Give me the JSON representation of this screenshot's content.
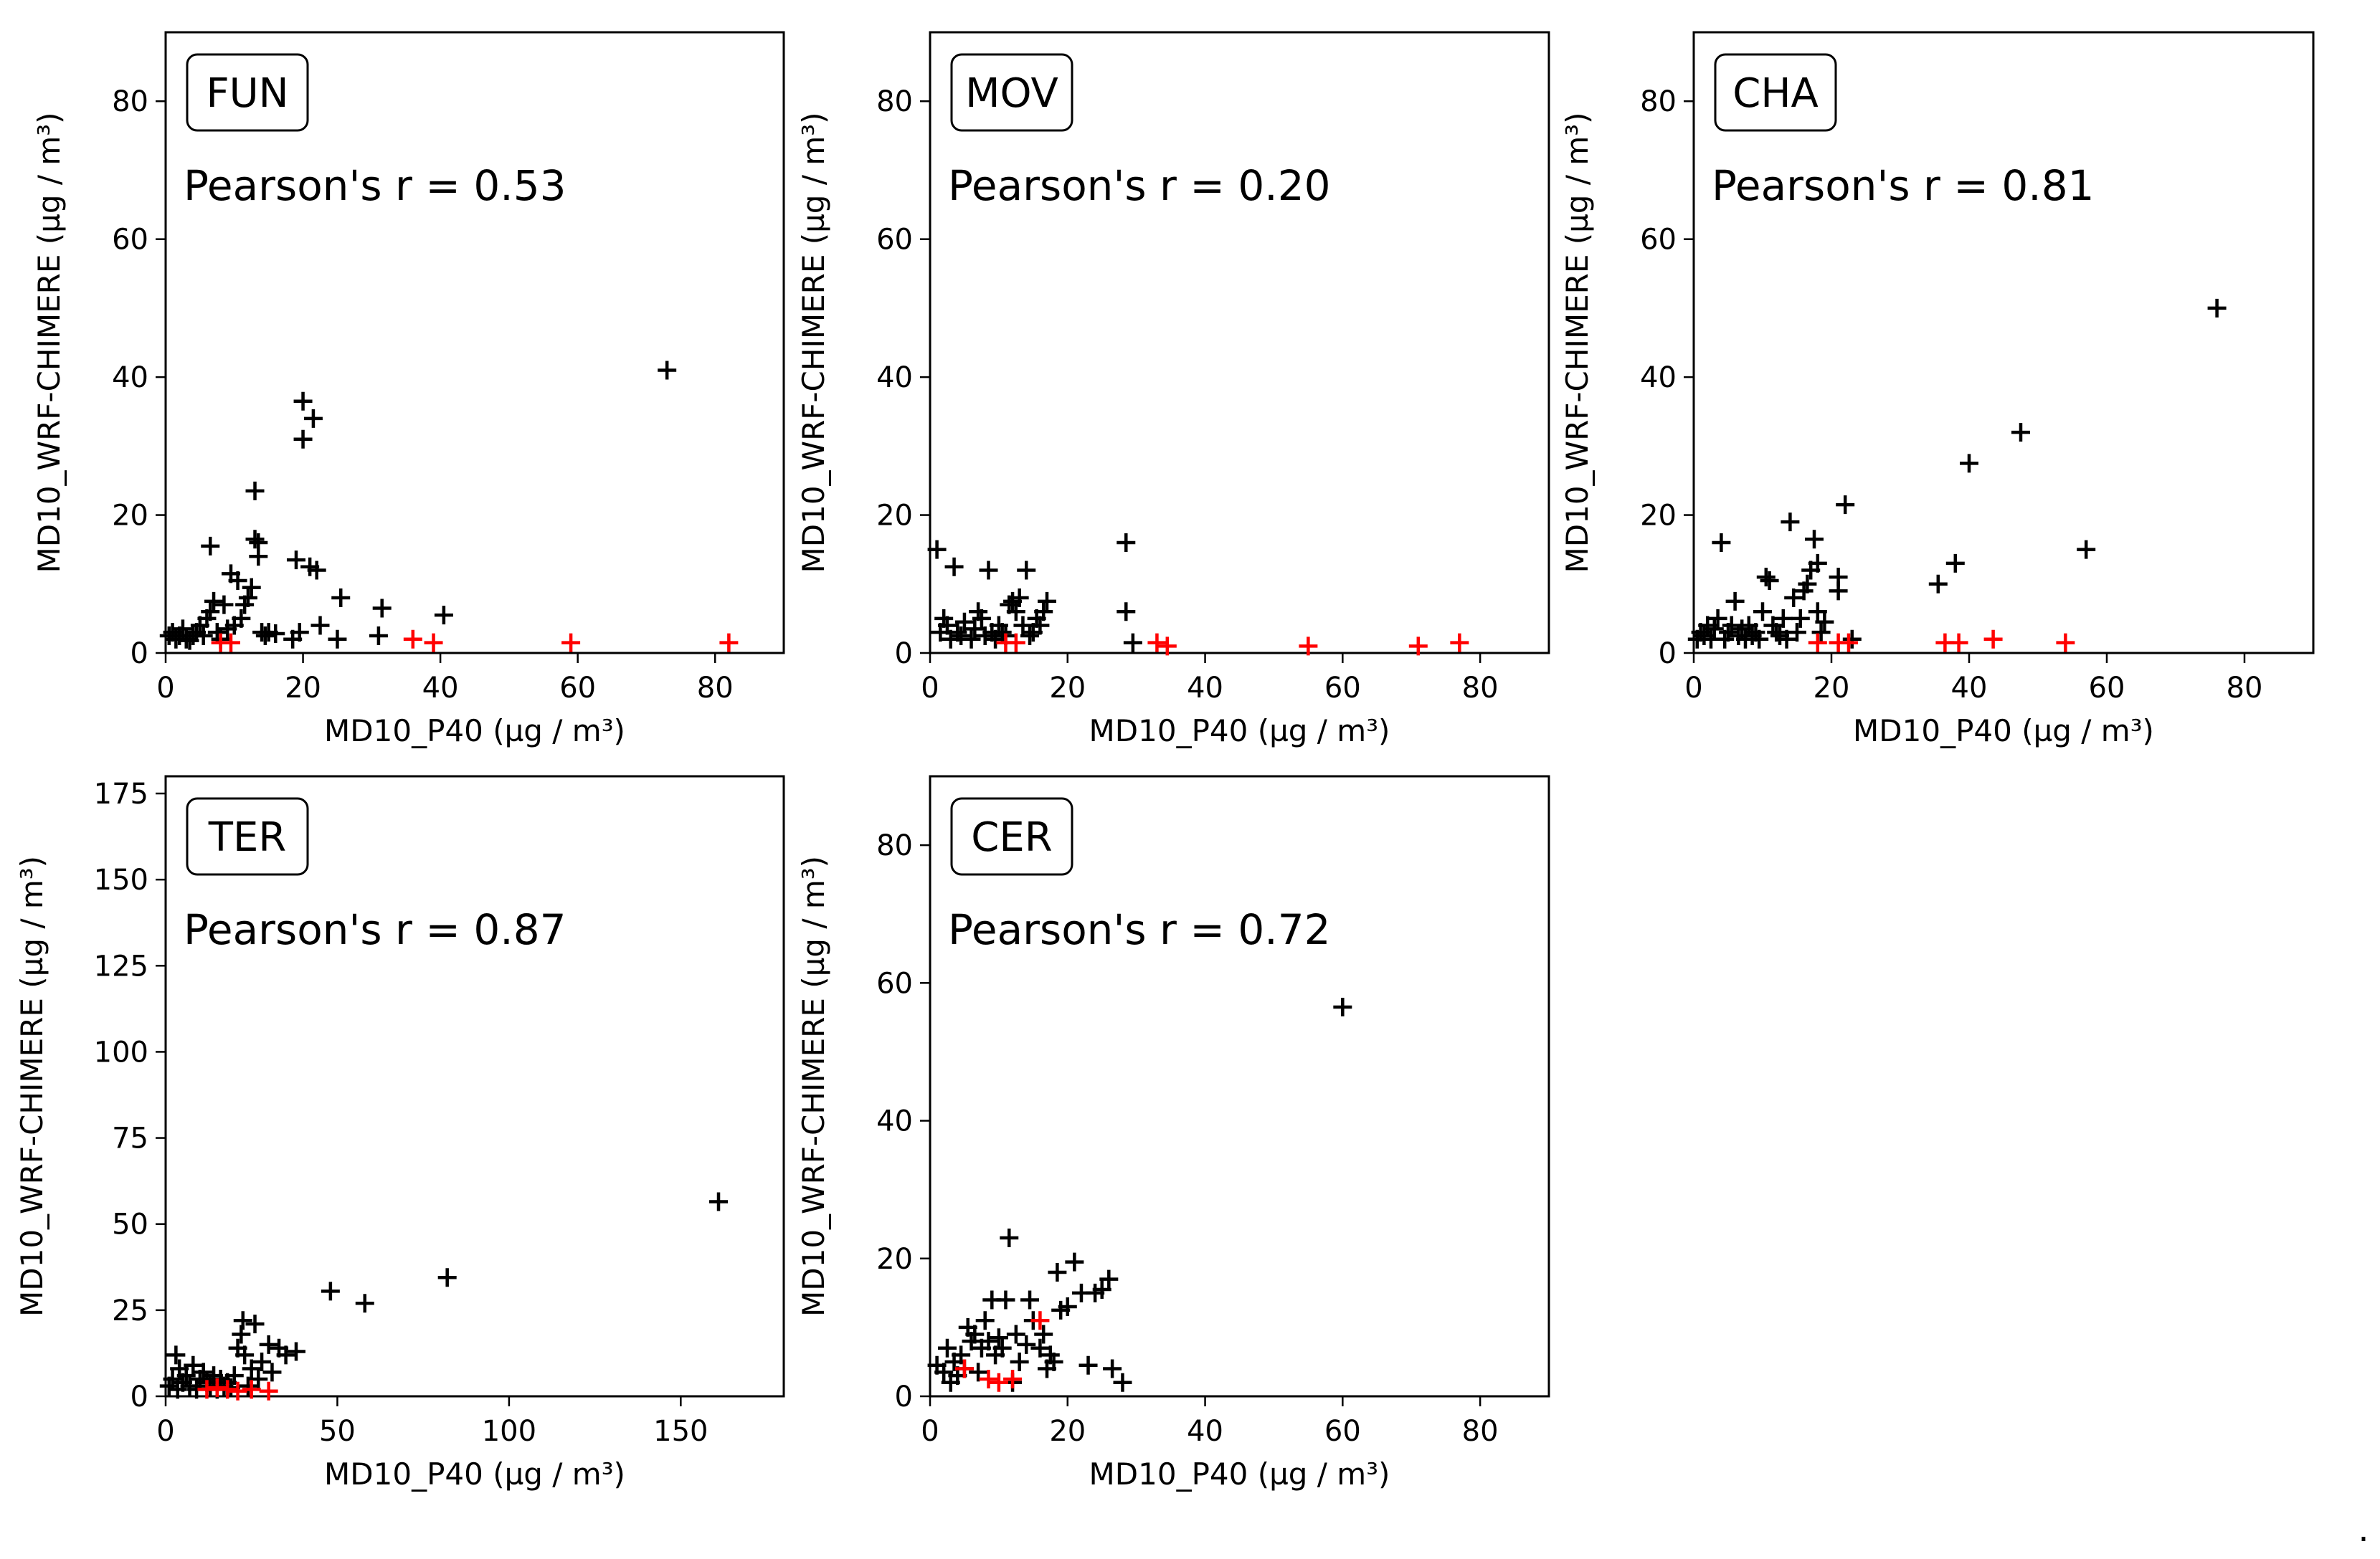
{
  "figure_dot": ".",
  "colors": {
    "normal": "#000000",
    "highlight": "#ff0000",
    "frame": "#000000"
  },
  "chart_data": [
    {
      "type": "scatter",
      "title": "FUN",
      "annotation": "Pearson's r = 0.53",
      "xlabel": "MD10_P40 (µg / m³)",
      "ylabel": "MD10_WRF-CHIMERE (µg / m³)",
      "xlim": [
        0,
        90
      ],
      "ylim": [
        0,
        90
      ],
      "xticks": [
        0,
        20,
        40,
        60,
        80
      ],
      "yticks": [
        0,
        20,
        40,
        60,
        80
      ],
      "series": [
        {
          "name": "points",
          "color": "#000000",
          "points": [
            [
              0.5,
              2.5
            ],
            [
              1,
              3
            ],
            [
              1.5,
              2
            ],
            [
              2,
              2.5
            ],
            [
              2.5,
              3.5
            ],
            [
              3,
              2
            ],
            [
              3.5,
              1.8
            ],
            [
              4,
              2.5
            ],
            [
              4.5,
              3
            ],
            [
              5,
              4
            ],
            [
              5.5,
              2.5
            ],
            [
              6,
              5
            ],
            [
              6.5,
              6
            ],
            [
              6.5,
              15.5
            ],
            [
              7,
              7.5
            ],
            [
              7.5,
              3
            ],
            [
              8,
              2
            ],
            [
              8.5,
              7
            ],
            [
              9,
              3.5
            ],
            [
              9.5,
              11.5
            ],
            [
              10,
              4
            ],
            [
              10.5,
              10.5
            ],
            [
              11,
              5
            ],
            [
              11.5,
              7
            ],
            [
              12,
              8
            ],
            [
              12.5,
              9.5
            ],
            [
              13,
              23.5
            ],
            [
              13,
              16.5
            ],
            [
              13.5,
              16
            ],
            [
              13.5,
              14
            ],
            [
              14,
              3
            ],
            [
              14.5,
              2.5
            ],
            [
              15,
              3
            ],
            [
              16,
              2.8
            ],
            [
              18.5,
              2
            ],
            [
              19,
              13.5
            ],
            [
              19.5,
              3
            ],
            [
              20,
              36.5
            ],
            [
              20,
              31
            ],
            [
              21,
              12.5
            ],
            [
              21.5,
              34
            ],
            [
              22,
              12
            ],
            [
              22.5,
              4
            ],
            [
              25,
              2
            ],
            [
              25.5,
              8
            ],
            [
              31,
              2.5
            ],
            [
              31.5,
              6.5
            ],
            [
              40.5,
              5.5
            ],
            [
              73,
              41
            ]
          ]
        },
        {
          "name": "highlight",
          "color": "#ff0000",
          "points": [
            [
              8,
              1.5
            ],
            [
              9.5,
              1.5
            ],
            [
              36,
              2
            ],
            [
              39,
              1.5
            ],
            [
              59,
              1.5
            ],
            [
              82,
              1.5
            ]
          ]
        }
      ]
    },
    {
      "type": "scatter",
      "title": "MOV",
      "annotation": "Pearson's r = 0.20",
      "xlabel": "MD10_P40 (µg / m³)",
      "ylabel": "MD10_WRF-CHIMERE (µg / m³)",
      "xlim": [
        0,
        90
      ],
      "ylim": [
        0,
        90
      ],
      "xticks": [
        0,
        20,
        40,
        60,
        80
      ],
      "yticks": [
        0,
        20,
        40,
        60,
        80
      ],
      "series": [
        {
          "name": "points",
          "color": "#000000",
          "points": [
            [
              1,
              15
            ],
            [
              1.5,
              3
            ],
            [
              2,
              5
            ],
            [
              2.5,
              4
            ],
            [
              3,
              2
            ],
            [
              3.5,
              12.5
            ],
            [
              4,
              3
            ],
            [
              4.5,
              2.5
            ],
            [
              5,
              4.5
            ],
            [
              6,
              2
            ],
            [
              6.5,
              3.5
            ],
            [
              7,
              6
            ],
            [
              7.5,
              5
            ],
            [
              8,
              2.5
            ],
            [
              8.5,
              12
            ],
            [
              9,
              3
            ],
            [
              9.5,
              2
            ],
            [
              10,
              4
            ],
            [
              10.5,
              3
            ],
            [
              11,
              2.5
            ],
            [
              11.5,
              7
            ],
            [
              12,
              7.5
            ],
            [
              12.5,
              6
            ],
            [
              13,
              8
            ],
            [
              13.5,
              4
            ],
            [
              14,
              12
            ],
            [
              14.5,
              2.5
            ],
            [
              15,
              3
            ],
            [
              15.5,
              5
            ],
            [
              16,
              4
            ],
            [
              16.5,
              6
            ],
            [
              17,
              7.5
            ],
            [
              28.5,
              16
            ],
            [
              28.5,
              6
            ],
            [
              29.5,
              1.5
            ]
          ]
        },
        {
          "name": "highlight",
          "color": "#ff0000",
          "points": [
            [
              11,
              1.5
            ],
            [
              12.5,
              1.5
            ],
            [
              33,
              1.5
            ],
            [
              34.5,
              1
            ],
            [
              55,
              1
            ],
            [
              71,
              1
            ],
            [
              77,
              1.5
            ]
          ]
        }
      ]
    },
    {
      "type": "scatter",
      "title": "CHA",
      "annotation": "Pearson's r = 0.81",
      "xlabel": "MD10_P40 (µg / m³)",
      "ylabel": "MD10_WRF-CHIMERE (µg / m³)",
      "xlim": [
        0,
        90
      ],
      "ylim": [
        0,
        90
      ],
      "xticks": [
        0,
        20,
        40,
        60,
        80
      ],
      "yticks": [
        0,
        20,
        40,
        60,
        80
      ],
      "series": [
        {
          "name": "points",
          "color": "#000000",
          "points": [
            [
              0.5,
              2
            ],
            [
              1,
              3
            ],
            [
              1.5,
              2.5
            ],
            [
              2,
              4
            ],
            [
              2.5,
              2
            ],
            [
              3,
              3.5
            ],
            [
              3.5,
              5
            ],
            [
              4,
              16
            ],
            [
              4.5,
              2
            ],
            [
              5,
              3
            ],
            [
              5.5,
              4
            ],
            [
              6,
              7.5
            ],
            [
              6.5,
              2.5
            ],
            [
              7,
              3.5
            ],
            [
              7.5,
              2
            ],
            [
              8,
              4
            ],
            [
              8.5,
              2.5
            ],
            [
              9,
              3
            ],
            [
              9.5,
              2
            ],
            [
              10,
              6
            ],
            [
              10.5,
              11
            ],
            [
              11,
              10.5
            ],
            [
              11.5,
              4
            ],
            [
              12,
              3
            ],
            [
              12.5,
              2.5
            ],
            [
              13,
              5
            ],
            [
              13.5,
              2
            ],
            [
              14,
              19
            ],
            [
              14.5,
              8
            ],
            [
              15,
              3
            ],
            [
              15.5,
              5
            ],
            [
              16,
              9
            ],
            [
              16.5,
              10
            ],
            [
              17,
              12
            ],
            [
              17.5,
              16.5
            ],
            [
              18,
              6
            ],
            [
              18,
              13
            ],
            [
              18.5,
              3
            ],
            [
              19,
              4.5
            ],
            [
              21,
              9
            ],
            [
              21,
              11
            ],
            [
              22,
              21.5
            ],
            [
              23,
              2
            ],
            [
              35.5,
              10
            ],
            [
              38,
              13
            ],
            [
              40,
              27.5
            ],
            [
              47.5,
              32
            ],
            [
              57,
              15
            ],
            [
              76,
              50
            ]
          ]
        },
        {
          "name": "highlight",
          "color": "#ff0000",
          "points": [
            [
              18,
              1.5
            ],
            [
              21,
              1.5
            ],
            [
              22.5,
              1.5
            ],
            [
              36.5,
              1.5
            ],
            [
              38.5,
              1.5
            ],
            [
              43.5,
              2
            ],
            [
              54,
              1.5
            ]
          ]
        }
      ]
    },
    {
      "type": "scatter",
      "title": "TER",
      "annotation": "Pearson's r = 0.87",
      "xlabel": "MD10_P40 (µg / m³)",
      "ylabel": "MD10_WRF-CHIMERE (µg / m³)",
      "xlim": [
        0,
        180
      ],
      "ylim": [
        0,
        180
      ],
      "xticks": [
        0,
        50,
        100,
        150
      ],
      "yticks": [
        0,
        25,
        50,
        75,
        100,
        125,
        150,
        175
      ],
      "series": [
        {
          "name": "points",
          "color": "#000000",
          "points": [
            [
              1,
              3
            ],
            [
              2,
              5
            ],
            [
              3,
              12
            ],
            [
              3.5,
              2
            ],
            [
              4,
              8
            ],
            [
              5,
              4
            ],
            [
              6,
              6
            ],
            [
              7,
              3
            ],
            [
              8,
              9
            ],
            [
              9,
              2
            ],
            [
              10,
              5
            ],
            [
              11,
              7
            ],
            [
              12,
              4
            ],
            [
              13,
              3
            ],
            [
              14,
              6
            ],
            [
              15,
              2
            ],
            [
              16,
              5
            ],
            [
              17,
              3
            ],
            [
              18,
              4
            ],
            [
              19,
              2.5
            ],
            [
              20,
              6
            ],
            [
              21,
              14
            ],
            [
              22,
              18
            ],
            [
              22.5,
              22
            ],
            [
              23,
              12
            ],
            [
              24,
              3
            ],
            [
              25,
              8
            ],
            [
              26,
              21
            ],
            [
              27,
              5
            ],
            [
              28,
              10
            ],
            [
              30,
              15
            ],
            [
              31,
              7
            ],
            [
              33,
              14
            ],
            [
              35,
              12
            ],
            [
              38,
              13
            ],
            [
              48,
              30.5
            ],
            [
              58,
              27
            ],
            [
              82,
              34.5
            ],
            [
              161,
              56.5
            ]
          ]
        },
        {
          "name": "highlight",
          "color": "#ff0000",
          "points": [
            [
              12,
              2
            ],
            [
              15,
              2.5
            ],
            [
              18,
              2
            ],
            [
              21,
              1.5
            ],
            [
              25,
              2
            ],
            [
              30,
              1.5
            ]
          ]
        }
      ]
    },
    {
      "type": "scatter",
      "title": "CER",
      "annotation": "Pearson's r = 0.72",
      "xlabel": "MD10_P40 (µg / m³)",
      "ylabel": "MD10_WRF-CHIMERE (µg / m³)",
      "xlim": [
        0,
        90
      ],
      "ylim": [
        0,
        90
      ],
      "xticks": [
        0,
        20,
        40,
        60,
        80
      ],
      "yticks": [
        0,
        20,
        40,
        60,
        80
      ],
      "series": [
        {
          "name": "points",
          "color": "#000000",
          "points": [
            [
              1,
              4.5
            ],
            [
              2,
              3.5
            ],
            [
              2.5,
              7
            ],
            [
              3,
              2
            ],
            [
              3.5,
              5
            ],
            [
              4,
              3
            ],
            [
              4.5,
              6
            ],
            [
              5,
              4
            ],
            [
              5.5,
              10
            ],
            [
              6,
              8
            ],
            [
              6.5,
              9
            ],
            [
              7,
              3.5
            ],
            [
              7.5,
              7
            ],
            [
              8,
              11
            ],
            [
              8.5,
              8
            ],
            [
              9,
              14
            ],
            [
              9.5,
              6
            ],
            [
              10,
              8.5
            ],
            [
              10.5,
              7
            ],
            [
              11,
              14
            ],
            [
              11.5,
              23
            ],
            [
              12,
              2
            ],
            [
              12.5,
              9
            ],
            [
              13,
              5
            ],
            [
              14,
              7.5
            ],
            [
              14.5,
              14
            ],
            [
              15,
              11
            ],
            [
              16,
              7
            ],
            [
              16.5,
              9
            ],
            [
              17,
              4
            ],
            [
              17.5,
              6
            ],
            [
              18,
              5
            ],
            [
              18.5,
              18
            ],
            [
              19,
              12.5
            ],
            [
              20,
              13
            ],
            [
              21,
              19.5
            ],
            [
              22,
              15
            ],
            [
              23,
              4.5
            ],
            [
              24,
              15
            ],
            [
              25,
              15.5
            ],
            [
              26,
              17
            ],
            [
              26.5,
              4
            ],
            [
              28,
              2
            ],
            [
              60,
              56.5
            ]
          ]
        },
        {
          "name": "highlight",
          "color": "#ff0000",
          "points": [
            [
              5,
              4
            ],
            [
              8.5,
              2.5
            ],
            [
              10,
              2
            ],
            [
              12,
              2.5
            ],
            [
              16,
              11
            ]
          ]
        }
      ]
    }
  ]
}
